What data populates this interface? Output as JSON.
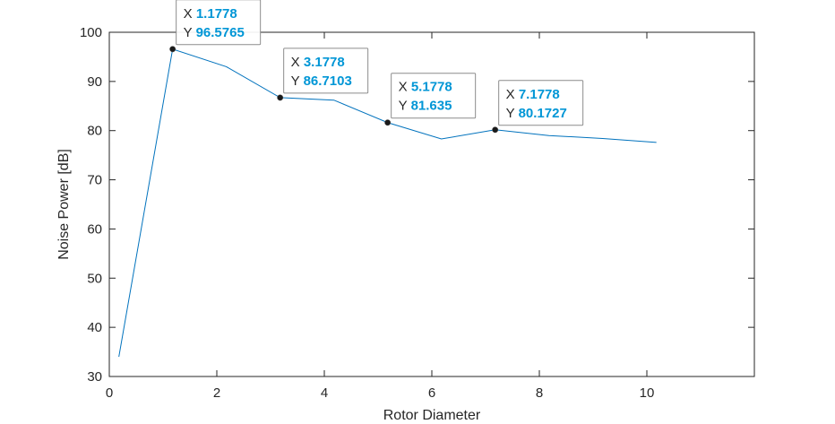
{
  "chart_data": {
    "type": "line",
    "xlabel": "Rotor Diameter",
    "ylabel": "Noise Power [dB]",
    "xlim": [
      0,
      12
    ],
    "ylim": [
      30,
      100
    ],
    "xticks": [
      0,
      2,
      4,
      6,
      8,
      10
    ],
    "yticks": [
      30,
      40,
      50,
      60,
      70,
      80,
      90,
      100
    ],
    "grid": false,
    "series": [
      {
        "x": [
          0.1778,
          1.1778,
          2.1778,
          3.1778,
          4.1778,
          5.1778,
          6.1778,
          7.1778,
          8.1778,
          9.1778,
          10.1778
        ],
        "y": [
          34.0,
          96.5765,
          93.0,
          86.7103,
          86.2,
          81.635,
          78.3,
          80.1727,
          79.0,
          78.4,
          77.6
        ]
      }
    ],
    "datatips": [
      {
        "x_prefix": "X",
        "y_prefix": "Y",
        "x": "1.1778",
        "y": "96.5765"
      },
      {
        "x_prefix": "X",
        "y_prefix": "Y",
        "x": "3.1778",
        "y": "86.7103"
      },
      {
        "x_prefix": "X",
        "y_prefix": "Y",
        "x": "5.1778",
        "y": "81.635"
      },
      {
        "x_prefix": "X",
        "y_prefix": "Y",
        "x": "7.1778",
        "y": "80.1727"
      }
    ],
    "colors": {
      "line": "#0072BD",
      "datatip_value": "#0096D6",
      "axis": "#262626"
    }
  }
}
